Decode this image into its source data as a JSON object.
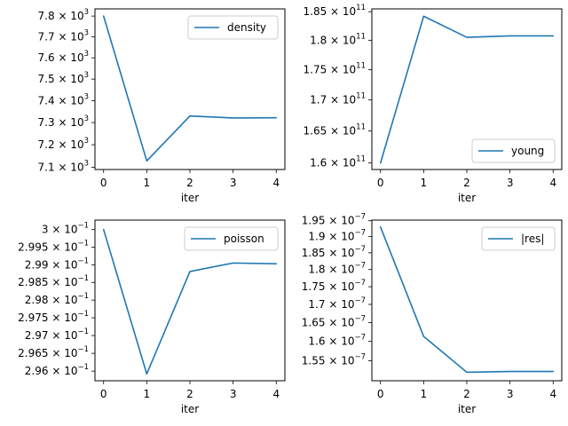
{
  "colors": {
    "series": "#1f77b4"
  },
  "chart_data": [
    {
      "type": "line",
      "title": "",
      "xlabel": "iter",
      "ylabel": "",
      "yscale": "log",
      "legend_position": "upper right",
      "grid": false,
      "x": [
        0,
        1,
        2,
        3,
        4
      ],
      "xticks": [
        "0",
        "1",
        "2",
        "3",
        "4"
      ],
      "xlim": [
        -0.2,
        4.2
      ],
      "ylim": [
        7090,
        7835
      ],
      "yticks": [
        {
          "value": 7100,
          "mantissa": "7.1",
          "exponent": "3"
        },
        {
          "value": 7200,
          "mantissa": "7.2",
          "exponent": "3"
        },
        {
          "value": 7300,
          "mantissa": "7.3",
          "exponent": "3"
        },
        {
          "value": 7400,
          "mantissa": "7.4",
          "exponent": "3"
        },
        {
          "value": 7500,
          "mantissa": "7.5",
          "exponent": "3"
        },
        {
          "value": 7600,
          "mantissa": "7.6",
          "exponent": "3"
        },
        {
          "value": 7700,
          "mantissa": "7.7",
          "exponent": "3"
        },
        {
          "value": 7800,
          "mantissa": "7.8",
          "exponent": "3"
        }
      ],
      "series": [
        {
          "name": "density",
          "values": [
            7800,
            7128,
            7330,
            7321,
            7322
          ]
        }
      ]
    },
    {
      "type": "line",
      "title": "",
      "xlabel": "iter",
      "ylabel": "",
      "yscale": "log",
      "legend_position": "lower right",
      "grid": false,
      "x": [
        0,
        1,
        2,
        3,
        4
      ],
      "xticks": [
        "0",
        "1",
        "2",
        "3",
        "4"
      ],
      "xlim": [
        -0.2,
        4.2
      ],
      "ylim": [
        159000000000,
        185500000000
      ],
      "yticks": [
        {
          "value": 160000000000,
          "mantissa": "1.6",
          "exponent": "11"
        },
        {
          "value": 165000000000,
          "mantissa": "1.65",
          "exponent": "11"
        },
        {
          "value": 170000000000,
          "mantissa": "1.7",
          "exponent": "11"
        },
        {
          "value": 175000000000,
          "mantissa": "1.75",
          "exponent": "11"
        },
        {
          "value": 180000000000,
          "mantissa": "1.8",
          "exponent": "11"
        },
        {
          "value": 185000000000,
          "mantissa": "1.85",
          "exponent": "11"
        }
      ],
      "series": [
        {
          "name": "young",
          "values": [
            160000000000,
            184200000000,
            180500000000,
            180750000000,
            180750000000
          ]
        }
      ]
    },
    {
      "type": "line",
      "title": "",
      "xlabel": "iter",
      "ylabel": "",
      "yscale": "log",
      "legend_position": "upper right",
      "grid": false,
      "x": [
        0,
        1,
        2,
        3,
        4
      ],
      "xticks": [
        "0",
        "1",
        "2",
        "3",
        "4"
      ],
      "xlim": [
        -0.2,
        4.2
      ],
      "ylim": [
        0.29573,
        0.30027
      ],
      "yticks": [
        {
          "value": 0.296,
          "mantissa": "2.96",
          "exponent": "−1"
        },
        {
          "value": 0.2965,
          "mantissa": "2.965",
          "exponent": "−1"
        },
        {
          "value": 0.297,
          "mantissa": "2.97",
          "exponent": "−1"
        },
        {
          "value": 0.2975,
          "mantissa": "2.975",
          "exponent": "−1"
        },
        {
          "value": 0.298,
          "mantissa": "2.98",
          "exponent": "−1"
        },
        {
          "value": 0.2985,
          "mantissa": "2.985",
          "exponent": "−1"
        },
        {
          "value": 0.299,
          "mantissa": "2.99",
          "exponent": "−1"
        },
        {
          "value": 0.2995,
          "mantissa": "2.995",
          "exponent": "−1"
        },
        {
          "value": 0.3,
          "mantissa": "3",
          "exponent": "−1"
        }
      ],
      "series": [
        {
          "name": "poisson",
          "values": [
            0.3,
            0.29592,
            0.29881,
            0.29905,
            0.29903
          ]
        }
      ]
    },
    {
      "type": "line",
      "title": "",
      "xlabel": "iter",
      "ylabel": "",
      "yscale": "log",
      "legend_position": "upper right",
      "grid": false,
      "x": [
        0,
        1,
        2,
        3,
        4
      ],
      "xticks": [
        "0",
        "1",
        "2",
        "3",
        "4"
      ],
      "xlim": [
        -0.2,
        4.2
      ],
      "ylim": [
        1.5e-07,
        1.952e-07
      ],
      "yticks": [
        {
          "value": 1.55e-07,
          "mantissa": "1.55",
          "exponent": "−7"
        },
        {
          "value": 1.6e-07,
          "mantissa": "1.6",
          "exponent": "−7"
        },
        {
          "value": 1.65e-07,
          "mantissa": "1.65",
          "exponent": "−7"
        },
        {
          "value": 1.7e-07,
          "mantissa": "1.7",
          "exponent": "−7"
        },
        {
          "value": 1.75e-07,
          "mantissa": "1.75",
          "exponent": "−7"
        },
        {
          "value": 1.8e-07,
          "mantissa": "1.8",
          "exponent": "−7"
        },
        {
          "value": 1.85e-07,
          "mantissa": "1.85",
          "exponent": "−7"
        },
        {
          "value": 1.9e-07,
          "mantissa": "1.9",
          "exponent": "−7"
        },
        {
          "value": 1.95e-07,
          "mantissa": "1.95",
          "exponent": "−7"
        }
      ],
      "series": [
        {
          "name": "|res|",
          "values": [
            1.93e-07,
            1.613e-07,
            1.521e-07,
            1.523e-07,
            1.523e-07
          ]
        }
      ]
    }
  ]
}
